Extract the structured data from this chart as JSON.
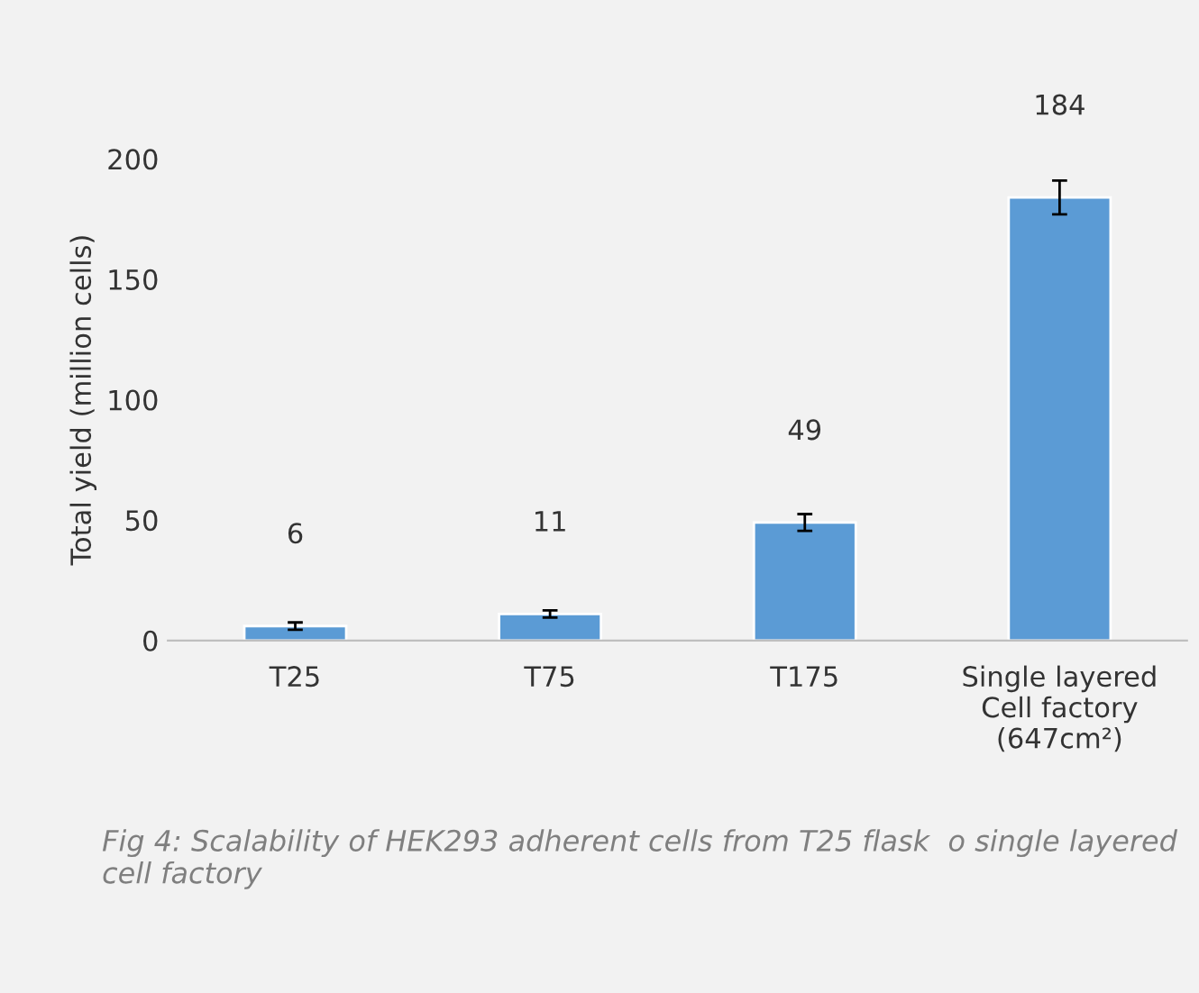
{
  "chart_data": {
    "type": "bar",
    "ylabel": "Total yield (million cells)",
    "categories": [
      "T25",
      "T75",
      "T175",
      "Single layered\nCell factory\n(647cm²)"
    ],
    "values": [
      6,
      11,
      49,
      184
    ],
    "errors": [
      1.5,
      1.5,
      3.5,
      7
    ],
    "color": "#5b9bd5",
    "ylim": [
      0,
      200
    ],
    "yticks": [
      0,
      50,
      100,
      150,
      200
    ],
    "grid": false,
    "data_labels": true,
    "annotations": [
      "Fig 4: Scalability of HEK293 adherent cells from T25 flask  o single layered cell factory"
    ]
  }
}
